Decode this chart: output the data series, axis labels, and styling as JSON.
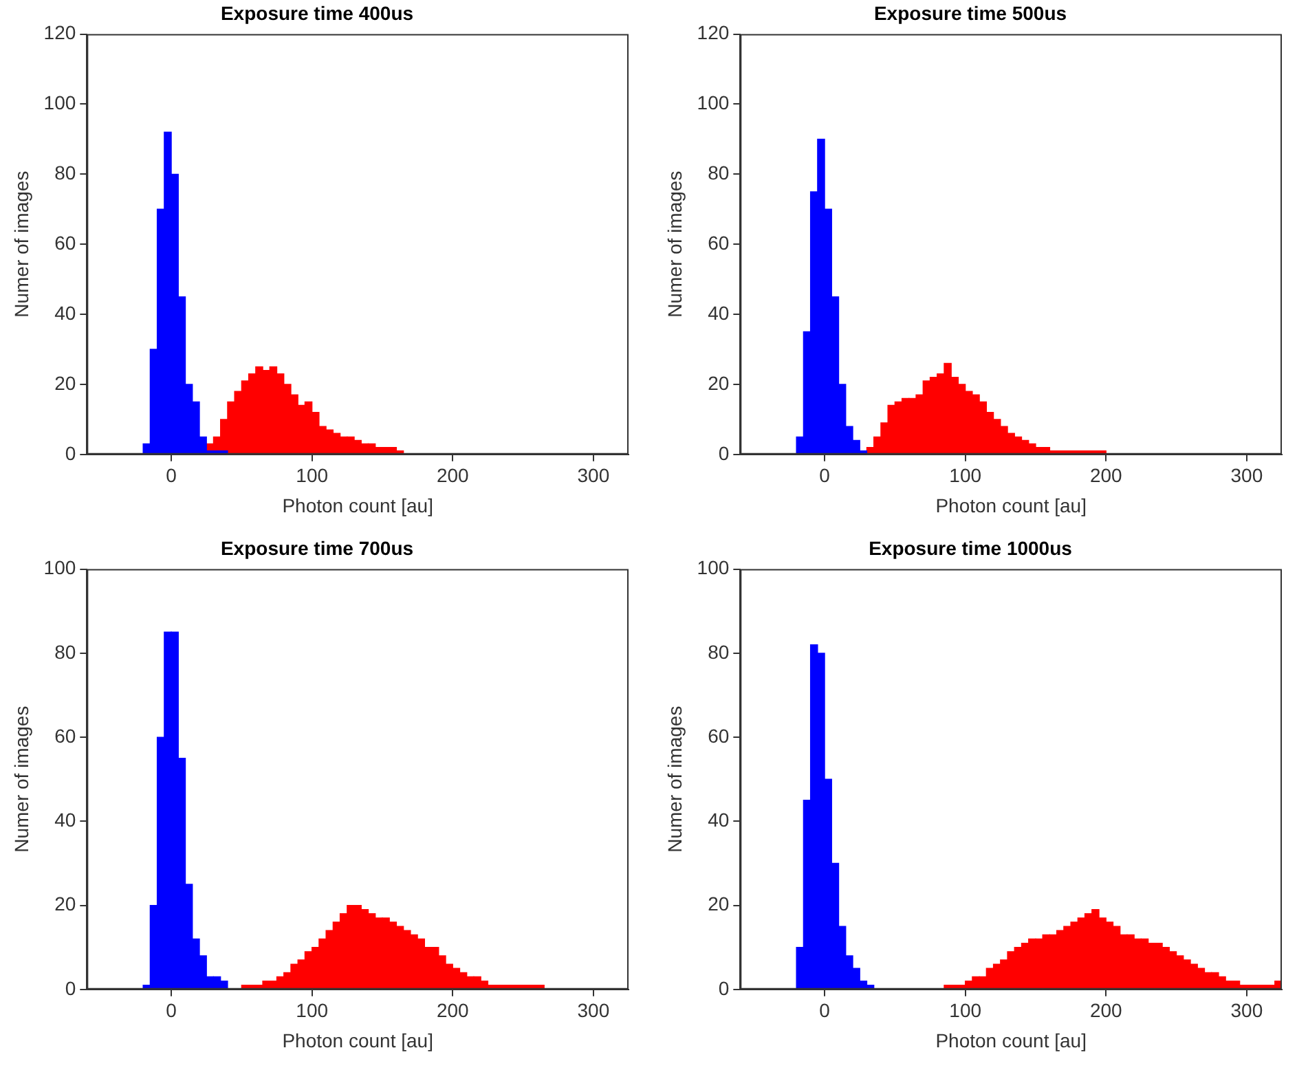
{
  "chart_data": [
    {
      "type": "histogram",
      "title": "Exposure time 400us",
      "xlabel": "Photon count [au]",
      "ylabel": "Numer of images",
      "xlim": [
        -60,
        325
      ],
      "xticks": [
        0,
        100,
        200,
        300
      ],
      "ylim": [
        0,
        120
      ],
      "yticks": [
        0,
        20,
        40,
        60,
        80,
        100,
        120
      ],
      "grid": false,
      "legend": false,
      "bins": [
        -25,
        -20,
        -15,
        -10,
        -5,
        0,
        5,
        10,
        15,
        20,
        25,
        30,
        35,
        40,
        45,
        50,
        55,
        60,
        65,
        70,
        75,
        80,
        85,
        90,
        95,
        100,
        105,
        110,
        115,
        120,
        125,
        130,
        135,
        140,
        145,
        150,
        155,
        160,
        165,
        170,
        175,
        180,
        185,
        190,
        195,
        200,
        205,
        210,
        215,
        220,
        225,
        230,
        235,
        240,
        245,
        250,
        255,
        260,
        265,
        270,
        275,
        280,
        285,
        290,
        295,
        300,
        305,
        310,
        315,
        320,
        325
      ],
      "series": [
        {
          "color": "#0000ff",
          "values": [
            null,
            3,
            30,
            70,
            92,
            80,
            45,
            20,
            15,
            5,
            1,
            1,
            1,
            null,
            null,
            null,
            null,
            null,
            null,
            null,
            null,
            null,
            null,
            null,
            null,
            null,
            null,
            null,
            null,
            null,
            null,
            null,
            null,
            null,
            null,
            null,
            null,
            null,
            null,
            null,
            null,
            null,
            null,
            null,
            null,
            null,
            null,
            null,
            null,
            null,
            null,
            null,
            null,
            null,
            null,
            null,
            null,
            null,
            null,
            null,
            null,
            null,
            null,
            null,
            null,
            null,
            null,
            null,
            null,
            null
          ]
        },
        {
          "color": "#ff0000",
          "values": [
            null,
            null,
            null,
            null,
            null,
            null,
            null,
            null,
            null,
            null,
            3,
            5,
            10,
            15,
            18,
            21,
            23,
            25,
            24,
            25,
            23,
            20,
            17,
            14,
            15,
            12,
            8,
            7,
            6,
            5,
            5,
            4,
            3,
            3,
            2,
            2,
            2,
            1,
            null,
            null,
            null,
            null,
            null,
            null,
            null,
            null,
            null,
            null,
            null,
            null,
            null,
            null,
            null,
            null,
            null,
            null,
            null,
            null,
            null,
            null,
            null,
            null,
            null,
            null,
            null,
            null,
            null,
            null,
            null,
            null
          ]
        }
      ]
    },
    {
      "type": "histogram",
      "title": "Exposure time 500us",
      "xlabel": "Photon count [au]",
      "ylabel": "Numer of images",
      "xlim": [
        -60,
        325
      ],
      "xticks": [
        0,
        100,
        200,
        300
      ],
      "ylim": [
        0,
        120
      ],
      "yticks": [
        0,
        20,
        40,
        60,
        80,
        100,
        120
      ],
      "grid": false,
      "legend": false,
      "bins": [
        -25,
        -20,
        -15,
        -10,
        -5,
        0,
        5,
        10,
        15,
        20,
        25,
        30,
        35,
        40,
        45,
        50,
        55,
        60,
        65,
        70,
        75,
        80,
        85,
        90,
        95,
        100,
        105,
        110,
        115,
        120,
        125,
        130,
        135,
        140,
        145,
        150,
        155,
        160,
        165,
        170,
        175,
        180,
        185,
        190,
        195,
        200,
        205,
        210,
        215,
        220,
        225,
        230,
        235,
        240,
        245,
        250,
        255,
        260,
        265,
        270,
        275,
        280,
        285,
        290,
        295,
        300,
        305,
        310,
        315,
        320,
        325
      ],
      "series": [
        {
          "color": "#0000ff",
          "values": [
            null,
            5,
            35,
            75,
            90,
            70,
            45,
            20,
            8,
            4,
            1,
            null,
            null,
            null,
            null,
            null,
            null,
            null,
            null,
            null,
            null,
            null,
            null,
            null,
            null,
            null,
            null,
            null,
            null,
            null,
            null,
            null,
            null,
            null,
            null,
            null,
            null,
            null,
            null,
            null,
            null,
            null,
            null,
            null,
            null,
            null,
            null,
            null,
            null,
            null,
            null,
            null,
            null,
            null,
            null,
            null,
            null,
            null,
            null,
            null,
            null,
            null,
            null,
            null,
            null,
            null,
            null,
            null,
            null,
            null
          ]
        },
        {
          "color": "#ff0000",
          "values": [
            null,
            null,
            null,
            null,
            null,
            null,
            null,
            null,
            null,
            null,
            null,
            2,
            5,
            9,
            14,
            15,
            16,
            16,
            17,
            21,
            22,
            23,
            26,
            22,
            20,
            18,
            17,
            15,
            12,
            10,
            8,
            6,
            5,
            4,
            3,
            2,
            2,
            1,
            1,
            1,
            1,
            1,
            1,
            1,
            1,
            null,
            null,
            null,
            null,
            null,
            null,
            null,
            null,
            null,
            null,
            null,
            null,
            null,
            null,
            null,
            null,
            null,
            null,
            null,
            null,
            null,
            null,
            null,
            null,
            null
          ]
        }
      ]
    },
    {
      "type": "histogram",
      "title": "Exposure time 700us",
      "xlabel": "Photon count [au]",
      "ylabel": "Numer of images",
      "xlim": [
        -60,
        325
      ],
      "xticks": [
        0,
        100,
        200,
        300
      ],
      "ylim": [
        0,
        100
      ],
      "yticks": [
        0,
        20,
        40,
        60,
        80,
        100
      ],
      "grid": false,
      "legend": false,
      "bins": [
        -25,
        -20,
        -15,
        -10,
        -5,
        0,
        5,
        10,
        15,
        20,
        25,
        30,
        35,
        40,
        45,
        50,
        55,
        60,
        65,
        70,
        75,
        80,
        85,
        90,
        95,
        100,
        105,
        110,
        115,
        120,
        125,
        130,
        135,
        140,
        145,
        150,
        155,
        160,
        165,
        170,
        175,
        180,
        185,
        190,
        195,
        200,
        205,
        210,
        215,
        220,
        225,
        230,
        235,
        240,
        245,
        250,
        255,
        260,
        265,
        270,
        275,
        280,
        285,
        290,
        295,
        300,
        305,
        310,
        315,
        320,
        325
      ],
      "series": [
        {
          "color": "#0000ff",
          "values": [
            null,
            1,
            20,
            60,
            85,
            85,
            55,
            25,
            12,
            8,
            3,
            3,
            2,
            null,
            null,
            null,
            null,
            null,
            null,
            null,
            null,
            null,
            null,
            null,
            null,
            null,
            null,
            null,
            null,
            null,
            null,
            null,
            null,
            null,
            null,
            null,
            null,
            null,
            null,
            null,
            null,
            null,
            null,
            null,
            null,
            null,
            null,
            null,
            null,
            null,
            null,
            null,
            null,
            null,
            null,
            null,
            null,
            null,
            null,
            null,
            null,
            null,
            null,
            null,
            null,
            null,
            null,
            null,
            null,
            null
          ]
        },
        {
          "color": "#ff0000",
          "values": [
            null,
            null,
            null,
            null,
            null,
            null,
            null,
            null,
            null,
            null,
            null,
            null,
            null,
            null,
            null,
            1,
            1,
            1,
            2,
            2,
            3,
            4,
            6,
            7,
            9,
            10,
            12,
            14,
            16,
            18,
            20,
            20,
            19,
            18,
            17,
            17,
            16,
            15,
            14,
            13,
            12,
            10,
            10,
            8,
            6,
            5,
            4,
            3,
            3,
            2,
            1,
            1,
            1,
            1,
            1,
            1,
            1,
            1,
            null,
            null,
            null,
            null,
            null,
            null,
            null,
            null,
            null,
            null,
            null,
            null
          ]
        }
      ]
    },
    {
      "type": "histogram",
      "title": "Exposure time 1000us",
      "xlabel": "Photon count [au]",
      "ylabel": "Numer of images",
      "xlim": [
        -60,
        325
      ],
      "xticks": [
        0,
        100,
        200,
        300
      ],
      "ylim": [
        0,
        100
      ],
      "yticks": [
        0,
        20,
        40,
        60,
        80,
        100
      ],
      "grid": false,
      "legend": false,
      "bins": [
        -25,
        -20,
        -15,
        -10,
        -5,
        0,
        5,
        10,
        15,
        20,
        25,
        30,
        35,
        40,
        45,
        50,
        55,
        60,
        65,
        70,
        75,
        80,
        85,
        90,
        95,
        100,
        105,
        110,
        115,
        120,
        125,
        130,
        135,
        140,
        145,
        150,
        155,
        160,
        165,
        170,
        175,
        180,
        185,
        190,
        195,
        200,
        205,
        210,
        215,
        220,
        225,
        230,
        235,
        240,
        245,
        250,
        255,
        260,
        265,
        270,
        275,
        280,
        285,
        290,
        295,
        300,
        305,
        310,
        315,
        320,
        325
      ],
      "series": [
        {
          "color": "#0000ff",
          "values": [
            null,
            10,
            45,
            82,
            80,
            50,
            30,
            15,
            8,
            5,
            2,
            1,
            null,
            null,
            null,
            null,
            null,
            null,
            null,
            null,
            null,
            null,
            null,
            null,
            null,
            null,
            null,
            null,
            null,
            null,
            null,
            null,
            null,
            null,
            null,
            null,
            null,
            null,
            null,
            null,
            null,
            null,
            null,
            null,
            null,
            null,
            null,
            null,
            null,
            null,
            null,
            null,
            null,
            null,
            null,
            null,
            null,
            null,
            null,
            null,
            null,
            null,
            null,
            null,
            null,
            null,
            null,
            null,
            null,
            null
          ]
        },
        {
          "color": "#ff0000",
          "values": [
            null,
            null,
            null,
            null,
            null,
            null,
            null,
            null,
            null,
            null,
            null,
            null,
            null,
            null,
            null,
            null,
            null,
            null,
            null,
            null,
            null,
            null,
            1,
            1,
            1,
            2,
            3,
            3,
            5,
            6,
            7,
            9,
            10,
            11,
            12,
            12,
            13,
            13,
            14,
            15,
            16,
            17,
            18,
            19,
            17,
            16,
            15,
            13,
            13,
            12,
            12,
            11,
            11,
            10,
            9,
            8,
            7,
            6,
            5,
            4,
            4,
            3,
            2,
            2,
            1,
            1,
            1,
            1,
            1,
            2
          ]
        }
      ]
    }
  ]
}
